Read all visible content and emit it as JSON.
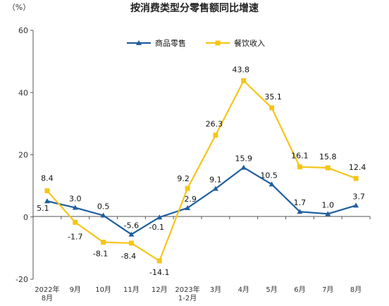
{
  "chart_data": {
    "type": "line",
    "title": "按消费类型分零售额同比增速",
    "unit_label": "（%）",
    "ylim": [
      -20,
      60
    ],
    "yticks": [
      -20,
      0,
      20,
      40,
      60
    ],
    "grid": false,
    "legend_position": "top-center",
    "categories": [
      [
        "2022年",
        "8月"
      ],
      [
        "9月"
      ],
      [
        "10月"
      ],
      [
        "11月"
      ],
      [
        "12月"
      ],
      [
        "2023年",
        "1-2月"
      ],
      [
        "3月"
      ],
      [
        "4月"
      ],
      [
        "5月"
      ],
      [
        "6月"
      ],
      [
        "7月"
      ],
      [
        "8月"
      ]
    ],
    "series": [
      {
        "name": "商品零售",
        "color": "#1f5f9f",
        "marker": "triangle",
        "values": [
          5.1,
          3.0,
          0.5,
          -5.6,
          -0.1,
          2.9,
          9.1,
          15.9,
          10.5,
          1.7,
          1.0,
          3.7
        ],
        "labels": [
          "5.1",
          "3.0",
          "0.5",
          "-5.6",
          "-0.1",
          "2.9",
          "9.1",
          "15.9",
          "10.5",
          "1.7",
          "1.0",
          "3.7"
        ]
      },
      {
        "name": "餐饮收入",
        "color": "#f5c518",
        "marker": "square",
        "values": [
          8.4,
          -1.7,
          -8.1,
          -8.4,
          -14.1,
          9.2,
          26.3,
          43.8,
          35.1,
          16.1,
          15.8,
          12.4
        ],
        "labels": [
          "8.4",
          "-1.7",
          "-8.1",
          "-8.4",
          "-14.1",
          "9.2",
          "26.3",
          "43.8",
          "35.1",
          "16.1",
          "15.8",
          "12.4"
        ]
      }
    ]
  }
}
